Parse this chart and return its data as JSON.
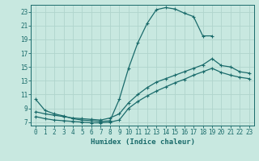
{
  "xlabel": "Humidex (Indice chaleur)",
  "background_color": "#c8e8e0",
  "grid_color": "#b0d4cc",
  "line_color": "#1a6b6b",
  "xlim": [
    -0.5,
    23.5
  ],
  "ylim": [
    6.5,
    24.0
  ],
  "xticks": [
    0,
    1,
    2,
    3,
    4,
    5,
    6,
    7,
    8,
    9,
    10,
    11,
    12,
    13,
    14,
    15,
    16,
    17,
    18,
    19,
    20,
    21,
    22,
    23
  ],
  "yticks": [
    7,
    9,
    11,
    13,
    15,
    17,
    19,
    21,
    23
  ],
  "curve1_x": [
    0,
    1,
    2,
    3,
    4,
    5,
    6,
    7,
    8,
    9,
    10,
    11,
    12,
    13,
    14,
    15,
    16,
    17,
    18,
    19
  ],
  "curve1_y": [
    10.3,
    8.7,
    8.2,
    7.9,
    7.5,
    7.3,
    7.2,
    7.1,
    7.2,
    10.3,
    14.8,
    18.5,
    21.3,
    23.3,
    23.6,
    23.4,
    22.8,
    22.3,
    19.5,
    19.5
  ],
  "curve2_x": [
    0,
    1,
    2,
    3,
    4,
    5,
    6,
    7,
    8,
    9,
    10,
    11,
    12,
    13,
    14,
    15,
    16,
    17,
    18,
    19,
    20,
    21,
    22,
    23
  ],
  "curve2_y": [
    8.5,
    8.2,
    8.0,
    7.8,
    7.6,
    7.5,
    7.4,
    7.3,
    7.6,
    8.2,
    9.8,
    11.0,
    12.0,
    12.8,
    13.3,
    13.8,
    14.3,
    14.8,
    15.3,
    16.2,
    15.2,
    15.0,
    14.3,
    14.1
  ],
  "curve3_x": [
    0,
    1,
    2,
    3,
    4,
    5,
    6,
    7,
    8,
    9,
    10,
    11,
    12,
    13,
    14,
    15,
    16,
    17,
    18,
    19,
    20,
    21,
    22,
    23
  ],
  "curve3_y": [
    7.8,
    7.5,
    7.3,
    7.2,
    7.1,
    7.0,
    6.9,
    6.9,
    7.0,
    7.3,
    9.0,
    10.0,
    10.8,
    11.5,
    12.1,
    12.7,
    13.2,
    13.8,
    14.3,
    14.8,
    14.2,
    13.8,
    13.5,
    13.3
  ]
}
